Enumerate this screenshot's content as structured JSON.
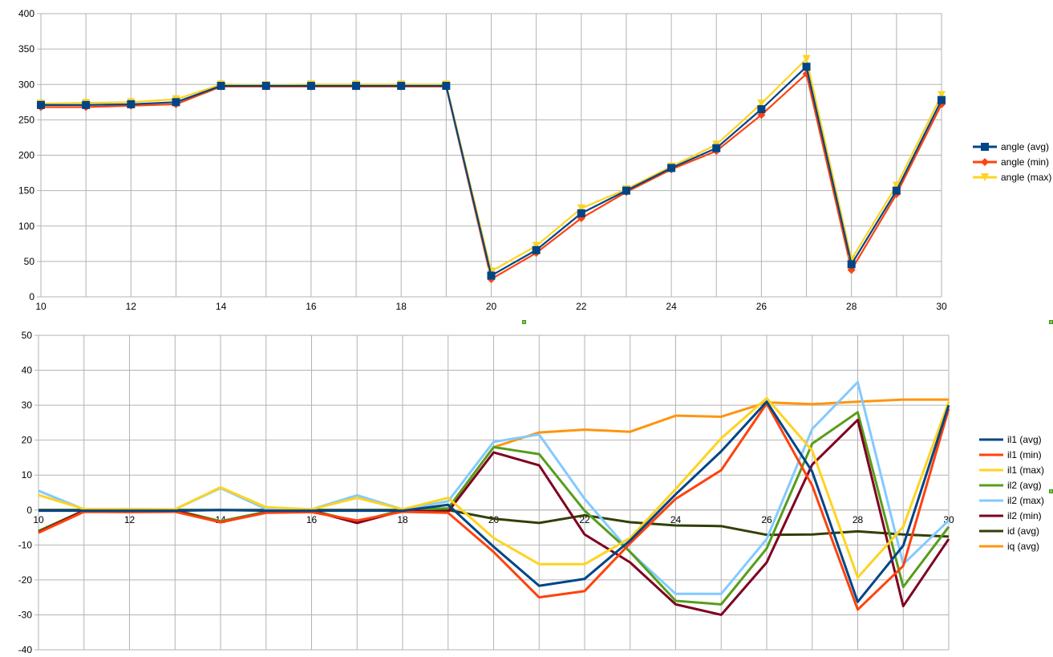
{
  "chart_data": [
    {
      "type": "line",
      "x": [
        10,
        11,
        12,
        13,
        14,
        15,
        16,
        17,
        18,
        19,
        20,
        21,
        22,
        23,
        24,
        25,
        26,
        27,
        28,
        29,
        30
      ],
      "ylim": [
        0,
        400
      ],
      "xlim": [
        10,
        30
      ],
      "yticks": [
        0,
        50,
        100,
        150,
        200,
        250,
        300,
        350,
        400
      ],
      "xticks": [
        10,
        12,
        14,
        16,
        18,
        20,
        22,
        24,
        26,
        28,
        30
      ],
      "grid": true,
      "legend": "right",
      "series": [
        {
          "name": "angle (min)",
          "color": "#ff420e",
          "marker": "diamond",
          "values": [
            268,
            268,
            270,
            272,
            297,
            297,
            297,
            297,
            297,
            297,
            25,
            62,
            111,
            148,
            180,
            206,
            257,
            315,
            38,
            145,
            272
          ]
        },
        {
          "name": "angle (max)",
          "color": "#ffd320",
          "marker": "triangle-down",
          "values": [
            273,
            274,
            275,
            279,
            300,
            299,
            300,
            300,
            300,
            300,
            36,
            72,
            125,
            152,
            184,
            215,
            273,
            336,
            53,
            157,
            285
          ]
        },
        {
          "name": "angle (avg)",
          "color": "#004586",
          "marker": "square",
          "values": [
            271,
            271,
            272,
            275,
            298,
            298,
            298,
            298,
            298,
            298,
            30,
            66,
            118,
            150,
            182,
            210,
            265,
            325,
            46,
            150,
            278
          ]
        }
      ],
      "legend_order": [
        "angle (avg)",
        "angle (min)",
        "angle (max)"
      ]
    },
    {
      "type": "line",
      "x": [
        10,
        11,
        12,
        13,
        14,
        15,
        16,
        17,
        18,
        19,
        20,
        21,
        22,
        23,
        24,
        25,
        26,
        27,
        28,
        29,
        30
      ],
      "ylim": [
        -40,
        50
      ],
      "xlim": [
        10,
        30
      ],
      "yticks": [
        -40,
        -30,
        -20,
        -10,
        0,
        10,
        20,
        30,
        40,
        50
      ],
      "xticks": [
        10,
        12,
        14,
        16,
        18,
        20,
        22,
        24,
        26,
        28,
        30
      ],
      "grid": true,
      "legend": "right",
      "series": [
        {
          "name": "iq (avg)",
          "color": "#ff950e",
          "values": [
            null,
            null,
            null,
            null,
            null,
            null,
            null,
            null,
            null,
            null,
            18,
            22.2,
            23,
            22.4,
            27,
            26.7,
            30.8,
            30.3,
            31,
            31.6,
            31.6
          ]
        },
        {
          "name": "id (avg)",
          "color": "#314004",
          "values": [
            0,
            0,
            0,
            0,
            0,
            0,
            0,
            0,
            0,
            0,
            -2.5,
            -3.7,
            -1.5,
            -3.5,
            -4.4,
            -4.6,
            -7.1,
            -7,
            -6.1,
            -7,
            -7.6
          ]
        },
        {
          "name": "il2 (max)",
          "color": "#83caff",
          "values": [
            5.5,
            0.2,
            0.3,
            0.2,
            6.3,
            0.3,
            0.2,
            4.2,
            0.2,
            2.5,
            19.5,
            21.6,
            3.2,
            -12,
            -24,
            -24,
            -8.3,
            23.2,
            36.6,
            -15.5,
            -3
          ]
        },
        {
          "name": "il2 (avg)",
          "color": "#579d1c",
          "values": [
            -6,
            -0.1,
            0,
            0,
            -3.2,
            -0.5,
            -0.1,
            -3.3,
            0,
            0.5,
            18,
            16,
            -0.2,
            -12,
            -26,
            -27,
            -11,
            19,
            28,
            -22,
            -4.8
          ]
        },
        {
          "name": "il2 (min)",
          "color": "#7e0021",
          "values": [
            -6.3,
            -0.2,
            -0.3,
            -0.2,
            -3.5,
            -0.7,
            -0.2,
            -3.7,
            -0.2,
            -0.5,
            16.5,
            12.8,
            -7,
            -15,
            -27,
            -30,
            -15,
            13,
            25.8,
            -27.5,
            -8.3
          ]
        },
        {
          "name": "il1 (max)",
          "color": "#ffd320",
          "values": [
            4.3,
            0.3,
            0.2,
            0.2,
            6.5,
            0.8,
            0.2,
            3.5,
            0.2,
            3.5,
            -8,
            -15.5,
            -15.5,
            -8,
            6,
            20.5,
            32,
            17,
            -19.3,
            -4.8,
            31
          ]
        },
        {
          "name": "il1 (min)",
          "color": "#ff420e",
          "values": [
            -6.5,
            -0.5,
            -0.6,
            -0.5,
            -3.5,
            -0.8,
            -0.6,
            -3,
            -0.5,
            -0.8,
            -12,
            -25,
            -23.2,
            -9.5,
            3.2,
            11.4,
            30.5,
            7,
            -28.5,
            -16,
            29
          ]
        },
        {
          "name": "il1 (avg)",
          "color": "#004586",
          "values": [
            -0.2,
            -0.2,
            -0.2,
            -0.2,
            0,
            -0.2,
            -0.2,
            -0.2,
            -0.2,
            1.5,
            -10.5,
            -21.7,
            -19.7,
            -8.7,
            4.5,
            16.8,
            31,
            11,
            -26.3,
            -10.2,
            30
          ]
        }
      ],
      "legend_order": [
        "il1 (avg)",
        "il1 (min)",
        "il1 (max)",
        "il2 (avg)",
        "il2 (max)",
        "il2 (min)",
        "id (avg)",
        "iq (avg)"
      ]
    }
  ]
}
